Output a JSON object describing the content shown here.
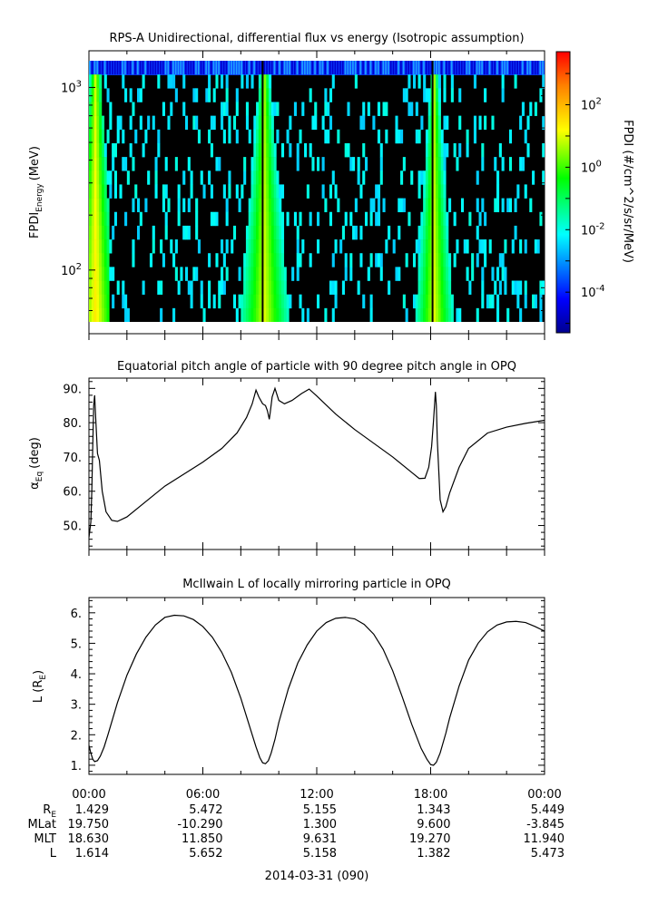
{
  "chart_data": [
    {
      "type": "heatmap",
      "title": "RPS-A Unidirectional, differential flux vs energy (Isotropic assumption)",
      "ylabel": {
        "main": "FPDI",
        "sub": "Energy",
        "units": "(MeV)"
      },
      "yscale": "log",
      "ylim": [
        52,
        1400
      ],
      "y_ticks": [
        {
          "base": "10",
          "exp": "3",
          "value": 1000
        },
        {
          "base": "10",
          "exp": "2",
          "value": 100
        }
      ],
      "x_range_hours": [
        0,
        24
      ],
      "colorbar": {
        "label": "FPDI (#/cm^2/s/sr/MeV)",
        "scale": "log",
        "range": [
          5e-06,
          5000
        ],
        "ticks": [
          {
            "base": "10",
            "exp": "2",
            "value": 100
          },
          {
            "base": "10",
            "exp": "0",
            "value": 1
          },
          {
            "base": "10",
            "exp": "-2",
            "value": 0.01
          },
          {
            "base": "10",
            "exp": "-4",
            "value": 0.0001
          }
        ],
        "colormap": "rainbow"
      },
      "features": [
        {
          "hours_center": 0.3,
          "description": "high flux band at low energies"
        },
        {
          "hours_center": 9.25,
          "description": "inner-belt pass: high flux wedge across energies"
        },
        {
          "hours_center": 18.2,
          "description": "inner-belt pass: high flux wedge across energies"
        }
      ]
    },
    {
      "type": "line",
      "title": "Equatorial pitch angle of particle with 90 degree pitch angle in OPQ",
      "ylabel": {
        "main": "α",
        "sub": "Eq",
        "units": "(deg)"
      },
      "ylim": [
        43,
        93
      ],
      "y_ticks": [
        "50.",
        "60.",
        "70.",
        "80.",
        "90."
      ],
      "x": [
        0,
        0.1,
        0.15,
        0.2,
        0.25,
        0.3,
        0.35,
        0.45,
        0.55,
        0.7,
        0.9,
        1.2,
        1.5,
        2.0,
        3.0,
        4.0,
        5.0,
        6.0,
        7.0,
        7.8,
        8.3,
        8.6,
        8.8,
        8.95,
        9.05,
        9.15,
        9.3,
        9.4,
        9.5,
        9.55,
        9.65,
        9.8,
        10.0,
        10.3,
        10.7,
        11.2,
        11.6,
        12.0,
        13.0,
        14.0,
        15.0,
        16.0,
        17.0,
        17.4,
        17.7,
        17.9,
        18.05,
        18.15,
        18.25,
        18.3,
        18.35,
        18.5,
        18.65,
        18.8,
        19.0,
        19.5,
        20.0,
        21.0,
        22.0,
        23.0,
        24.0
      ],
      "y": [
        46.5,
        51,
        60,
        73,
        85,
        88,
        82,
        71,
        69,
        60,
        54,
        51.5,
        51.2,
        52.5,
        57,
        61.5,
        65,
        68.5,
        72.5,
        77,
        81.5,
        85.5,
        89.5,
        87.5,
        86.5,
        85.5,
        85,
        83.5,
        81,
        83,
        87.5,
        90,
        86.5,
        85.5,
        86.5,
        88.5,
        89.8,
        87.8,
        82.5,
        78,
        74,
        70,
        65.5,
        63.7,
        63.8,
        67,
        73,
        80.5,
        89,
        85,
        75,
        57.5,
        54,
        55.5,
        59.5,
        67,
        72.5,
        77,
        78.7,
        79.8,
        80.7
      ]
    },
    {
      "type": "line",
      "title": "McIlwain L of locally mirroring particle in OPQ",
      "ylabel": {
        "main": "L (R",
        "sub": "E",
        "units": ")"
      },
      "ylim": [
        0.7,
        6.5
      ],
      "y_ticks": [
        "1.",
        "2.",
        "3.",
        "4.",
        "5.",
        "6."
      ],
      "x": [
        0,
        0.1,
        0.2,
        0.3,
        0.45,
        0.6,
        0.8,
        1.0,
        1.5,
        2.0,
        2.5,
        3.0,
        3.5,
        4.0,
        4.5,
        5.0,
        5.5,
        6.0,
        6.5,
        7.0,
        7.5,
        8.0,
        8.5,
        8.8,
        9.0,
        9.15,
        9.3,
        9.45,
        9.6,
        9.8,
        10.0,
        10.5,
        11.0,
        11.5,
        12.0,
        12.5,
        13.0,
        13.5,
        14.0,
        14.5,
        15.0,
        15.5,
        16.0,
        16.5,
        17.0,
        17.5,
        17.8,
        18.0,
        18.15,
        18.3,
        18.5,
        18.8,
        19.0,
        19.5,
        20.0,
        20.5,
        21.0,
        21.5,
        22.0,
        22.5,
        23.0,
        23.5,
        24.0
      ],
      "y": [
        1.65,
        1.4,
        1.2,
        1.12,
        1.15,
        1.3,
        1.6,
        2.0,
        3.05,
        3.95,
        4.65,
        5.2,
        5.6,
        5.85,
        5.92,
        5.9,
        5.78,
        5.55,
        5.2,
        4.7,
        4.05,
        3.2,
        2.2,
        1.6,
        1.25,
        1.08,
        1.05,
        1.15,
        1.4,
        1.85,
        2.4,
        3.5,
        4.35,
        4.95,
        5.4,
        5.68,
        5.82,
        5.85,
        5.8,
        5.62,
        5.3,
        4.8,
        4.1,
        3.25,
        2.35,
        1.55,
        1.2,
        1.02,
        1.0,
        1.1,
        1.4,
        2.05,
        2.55,
        3.6,
        4.45,
        5.0,
        5.38,
        5.6,
        5.7,
        5.72,
        5.68,
        5.55,
        5.4
      ]
    }
  ],
  "x_axis": {
    "tick_labels": [
      "00:00",
      "06:00",
      "12:00",
      "18:00",
      "00:00"
    ],
    "tick_hours": [
      0,
      6,
      12,
      18,
      24
    ],
    "date_label": "2014-03-31 (090)"
  },
  "ephemeris": {
    "rows": [
      {
        "label": "R",
        "label_sub": "E",
        "values": [
          "1.429",
          "5.472",
          "5.155",
          "1.343",
          "5.449"
        ]
      },
      {
        "label": "MLat",
        "label_sub": "",
        "values": [
          "19.750",
          "-10.290",
          "1.300",
          "9.600",
          "-3.845"
        ]
      },
      {
        "label": "MLT",
        "label_sub": "",
        "values": [
          "18.630",
          "11.850",
          "9.631",
          "19.270",
          "11.940"
        ]
      },
      {
        "label": "L",
        "label_sub": "",
        "values": [
          "1.614",
          "5.652",
          "5.158",
          "1.382",
          "5.473"
        ]
      }
    ]
  }
}
